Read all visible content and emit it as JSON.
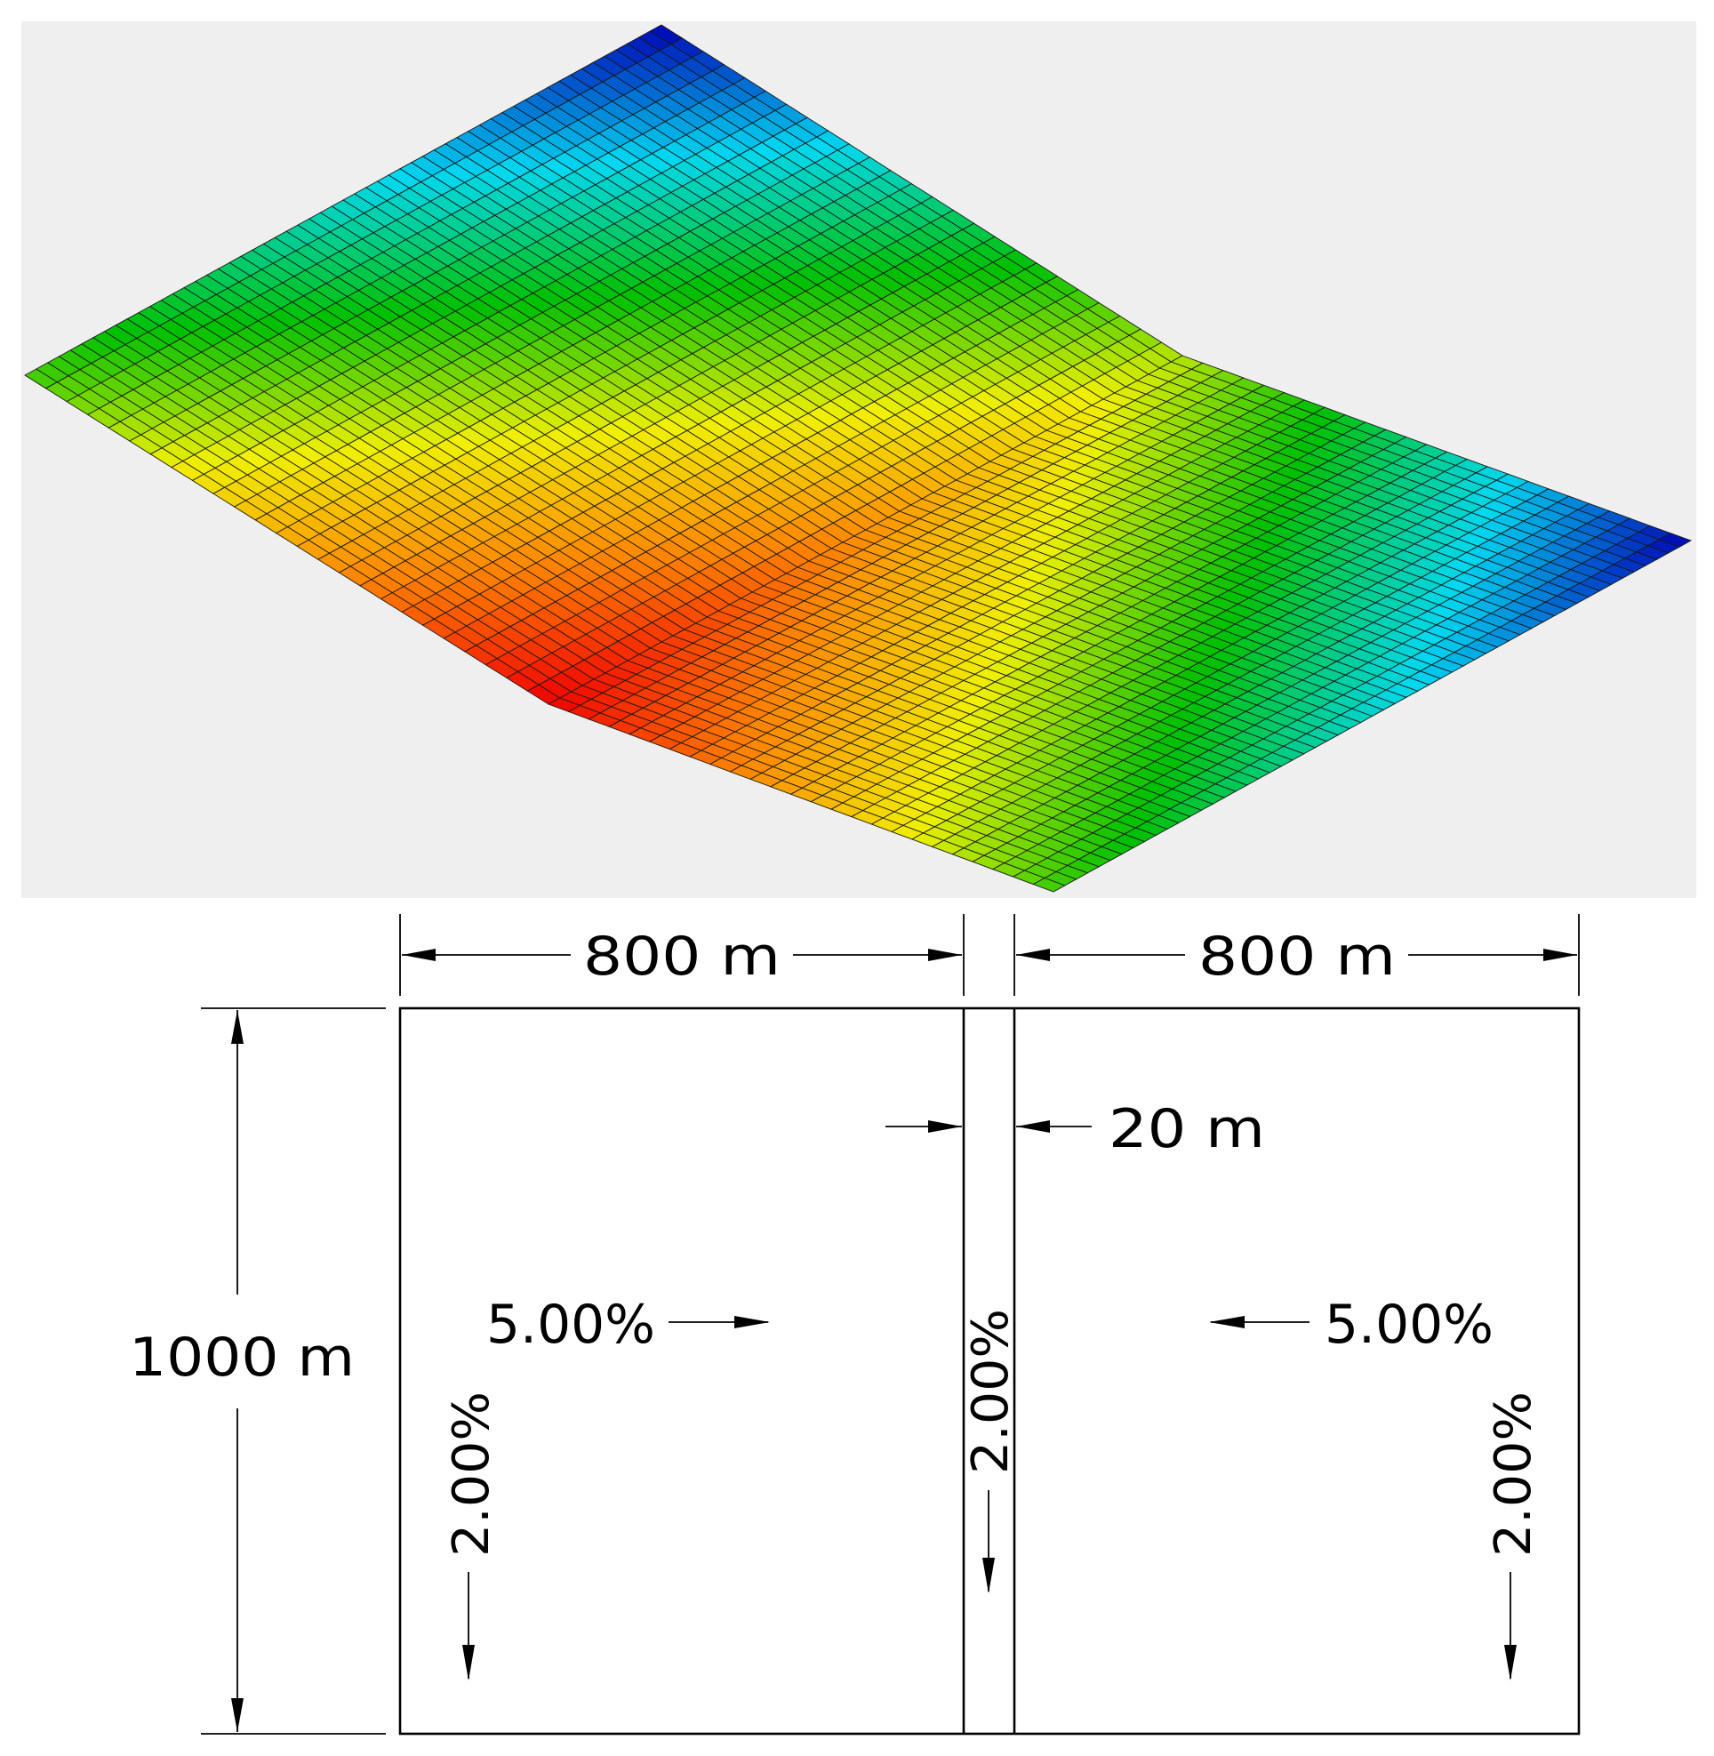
{
  "labels": {
    "left_width": "800 m",
    "right_width": "800 m",
    "channel_width": "20 m",
    "length": "1000 m",
    "left_cross_slope": "5.00%",
    "right_cross_slope": "5.00%",
    "left_long_slope": "2.00%",
    "channel_long_slope": "2.00%",
    "right_long_slope": "2.00%"
  },
  "surface": {
    "colormap": [
      "#0000b4",
      "#00d8f0",
      "#00c000",
      "#f0f000",
      "#ff8000",
      "#f00000"
    ],
    "background": "#efefef",
    "mesh_color": "#1a1a1a",
    "grid_columns": 50,
    "grid_rows": 56
  }
}
